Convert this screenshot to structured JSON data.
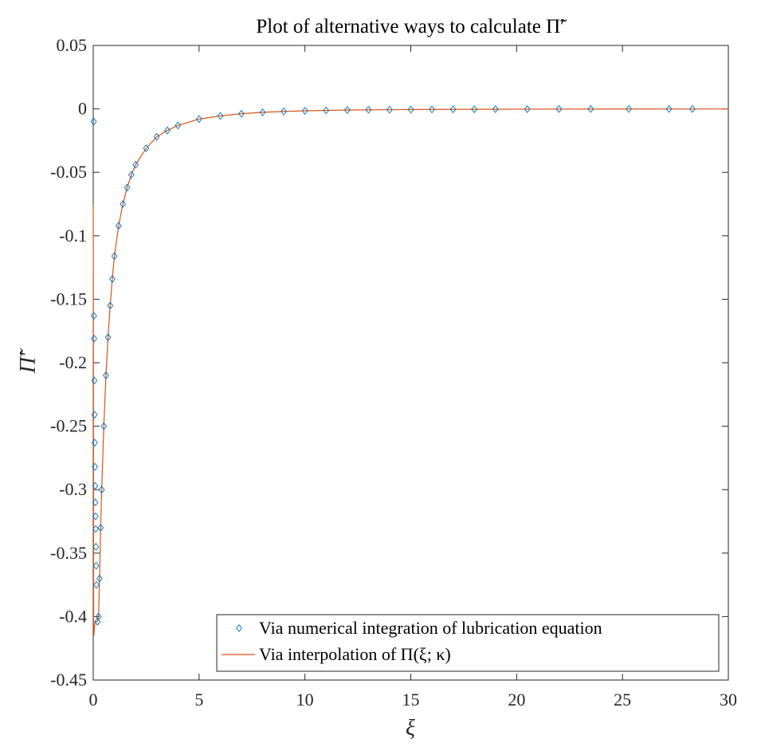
{
  "chart_data": {
    "type": "scatter",
    "title": "Plot of alternative ways to calculate Π̃′",
    "xlabel": "ξ",
    "ylabel": "Π̃′",
    "xlim": [
      0,
      30
    ],
    "ylim": [
      -0.45,
      0.05
    ],
    "x_ticks": [
      0,
      5,
      10,
      15,
      20,
      25,
      30
    ],
    "x_tick_labels": [
      "0",
      "5",
      "10",
      "15",
      "20",
      "25",
      "30"
    ],
    "y_ticks": [
      0.05,
      0,
      -0.05,
      -0.1,
      -0.15,
      -0.2,
      -0.25,
      -0.3,
      -0.35,
      -0.4,
      -0.45
    ],
    "y_tick_labels": [
      "0.05",
      "0",
      "-0.05",
      "-0.1",
      "-0.15",
      "-0.2",
      "-0.25",
      "-0.3",
      "-0.35",
      "-0.4",
      "-0.45"
    ],
    "grid": false,
    "legend_position": "bottom-right",
    "colors": {
      "markers": "#0072bd",
      "line": "#d95319"
    },
    "series": [
      {
        "name": "Via numerical integration of lubrication equation",
        "style": "diamond-markers",
        "x": [
          0.02,
          0.03,
          0.04,
          0.05,
          0.06,
          0.07,
          0.08,
          0.09,
          0.1,
          0.11,
          0.12,
          0.13,
          0.14,
          0.15,
          0.2,
          0.25,
          0.3,
          0.35,
          0.4,
          0.5,
          0.6,
          0.7,
          0.8,
          0.9,
          1.0,
          1.2,
          1.4,
          1.6,
          1.8,
          2.0,
          2.5,
          3.0,
          3.5,
          4.0,
          5.0,
          6.0,
          7.0,
          8.0,
          9.0,
          10.0,
          11.0,
          12.0,
          13.0,
          14.0,
          15.0,
          16.0,
          17.0,
          18.0,
          19.0,
          20.5,
          22.0,
          23.5,
          25.3,
          27.2,
          28.3
        ],
        "y": [
          -0.01,
          -0.163,
          -0.181,
          -0.214,
          -0.241,
          -0.263,
          -0.282,
          -0.297,
          -0.31,
          -0.321,
          -0.331,
          -0.345,
          -0.36,
          -0.375,
          -0.404,
          -0.4,
          -0.37,
          -0.33,
          -0.3,
          -0.25,
          -0.21,
          -0.18,
          -0.155,
          -0.134,
          -0.116,
          -0.092,
          -0.075,
          -0.062,
          -0.052,
          -0.044,
          -0.031,
          -0.022,
          -0.017,
          -0.013,
          -0.008,
          -0.0055,
          -0.0038,
          -0.0027,
          -0.002,
          -0.0015,
          -0.0012,
          -0.0009,
          -0.0007,
          -0.0006,
          -0.0005,
          -0.0004,
          -0.0003,
          -0.0003,
          -0.0002,
          -0.0002,
          -0.0001,
          -0.0001,
          -0.0001,
          -0.0001,
          -0.0001
        ]
      },
      {
        "name": "Via interpolation of Π(ξ; κ)",
        "style": "line",
        "x": [
          0,
          0.01,
          0.02,
          0.03,
          0.05,
          0.08,
          0.1,
          0.13,
          0.15,
          0.18,
          0.2,
          0.25,
          0.3,
          0.35,
          0.4,
          0.5,
          0.6,
          0.7,
          0.8,
          0.9,
          1.0,
          1.2,
          1.4,
          1.6,
          1.8,
          2.0,
          2.5,
          3.0,
          3.5,
          4.0,
          5.0,
          6.0,
          7.0,
          8.0,
          9.0,
          10.0,
          12.0,
          15.0,
          20.0,
          25.0,
          30.0
        ],
        "y": [
          -0.075,
          -0.2,
          -0.41,
          -0.415,
          -0.41,
          -0.405,
          -0.404,
          -0.404,
          -0.404,
          -0.404,
          -0.404,
          -0.4,
          -0.37,
          -0.33,
          -0.3,
          -0.25,
          -0.21,
          -0.18,
          -0.155,
          -0.134,
          -0.116,
          -0.092,
          -0.075,
          -0.062,
          -0.052,
          -0.044,
          -0.031,
          -0.022,
          -0.017,
          -0.013,
          -0.008,
          -0.0055,
          -0.0038,
          -0.0027,
          -0.002,
          -0.0015,
          -0.0009,
          -0.0005,
          -0.0002,
          -0.0001,
          -5e-05
        ]
      }
    ]
  }
}
